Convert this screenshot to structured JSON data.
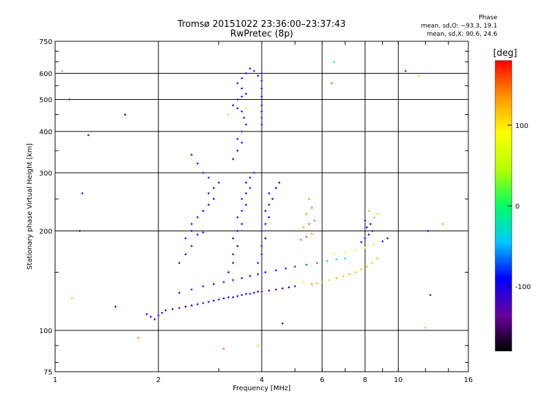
{
  "chart_data": {
    "type": "scatter",
    "title": "Tromsø 20151022 23:36:00–23:37:43",
    "subtitle": "RwPretec (8p)",
    "xlabel": "Frequency [MHz]",
    "ylabel": "Stationary phase Virtual Height [km]",
    "xscale": "log",
    "yscale": "log",
    "xlim": [
      1,
      16
    ],
    "ylim": [
      75,
      750
    ],
    "xticks": [
      1,
      2,
      4,
      6,
      8,
      10,
      16
    ],
    "yticks": [
      75,
      100,
      200,
      300,
      400,
      500,
      600,
      750
    ],
    "x_grid": [
      2,
      4,
      6,
      8,
      10
    ],
    "y_grid": [
      100,
      200,
      300,
      400,
      500,
      600
    ],
    "grid": true,
    "phase_box": {
      "heading": "Phase",
      "line_o": "mean, sd,O: −93.3, 19.1",
      "line_x": "mean, sd,X:  90.6, 24.6"
    },
    "colorbar": {
      "label": "[deg]",
      "range": [
        -180,
        180
      ],
      "ticks": [
        100,
        0,
        -100
      ],
      "colors": [
        "#000000",
        "#6a00a0",
        "#0000ff",
        "#00c8ff",
        "#00ff64",
        "#b4ff00",
        "#ffff00",
        "#ff9600",
        "#ff0000"
      ]
    },
    "series": [
      {
        "points": [
          [
            1.85,
            112,
            -110
          ],
          [
            1.9,
            110,
            -105
          ],
          [
            1.95,
            108,
            -115
          ],
          [
            2.0,
            111,
            -100
          ],
          [
            2.05,
            113,
            -95
          ],
          [
            2.1,
            115,
            -110
          ],
          [
            2.2,
            116,
            -105
          ],
          [
            2.3,
            117,
            -120
          ],
          [
            2.4,
            118,
            -100
          ],
          [
            2.5,
            119,
            -90
          ],
          [
            2.6,
            120,
            -110
          ],
          [
            2.7,
            121,
            -100
          ],
          [
            2.8,
            122,
            -95
          ],
          [
            2.9,
            123,
            -105
          ],
          [
            3.0,
            124,
            -100
          ],
          [
            3.1,
            125,
            -90
          ],
          [
            3.2,
            126,
            -110
          ],
          [
            3.3,
            126,
            -100
          ],
          [
            3.4,
            127,
            -105
          ],
          [
            3.5,
            128,
            -95
          ],
          [
            3.6,
            129,
            -100
          ],
          [
            3.7,
            129,
            -110
          ],
          [
            3.8,
            130,
            -100
          ],
          [
            3.9,
            131,
            -95
          ],
          [
            4.0,
            131,
            -100
          ],
          [
            4.2,
            132,
            -105
          ],
          [
            4.4,
            133,
            -100
          ],
          [
            4.6,
            134,
            -95
          ],
          [
            4.8,
            135,
            -90
          ],
          [
            5.0,
            136,
            -100
          ]
        ]
      },
      {
        "points": [
          [
            2.3,
            130,
            -90
          ],
          [
            2.5,
            133,
            -80
          ],
          [
            2.7,
            136,
            -100
          ],
          [
            2.9,
            138,
            -95
          ],
          [
            3.1,
            140,
            -85
          ],
          [
            3.3,
            142,
            -100
          ],
          [
            3.5,
            144,
            -90
          ],
          [
            3.7,
            146,
            -95
          ],
          [
            3.9,
            148,
            -100
          ],
          [
            4.1,
            150,
            -90
          ],
          [
            4.4,
            152,
            -85
          ],
          [
            4.7,
            154,
            -95
          ],
          [
            5.0,
            156,
            -80
          ],
          [
            5.4,
            158,
            -70
          ],
          [
            5.8,
            160,
            -60
          ],
          [
            6.2,
            162,
            -40
          ],
          [
            6.6,
            164,
            -20
          ],
          [
            7.0,
            165,
            -10
          ]
        ]
      },
      {
        "points": [
          [
            5.6,
            138,
            140
          ],
          [
            5.8,
            139,
            120
          ],
          [
            6.0,
            140,
            130
          ],
          [
            6.3,
            142,
            110
          ],
          [
            6.6,
            144,
            125
          ],
          [
            6.9,
            146,
            115
          ],
          [
            7.2,
            148,
            130
          ],
          [
            7.5,
            150,
            120
          ],
          [
            7.8,
            153,
            110
          ],
          [
            8.1,
            156,
            125
          ],
          [
            8.4,
            160,
            115
          ],
          [
            8.7,
            165,
            120
          ],
          [
            6.5,
            170,
            80
          ],
          [
            7.0,
            172,
            90
          ],
          [
            7.5,
            175,
            100
          ],
          [
            8.0,
            178,
            90
          ],
          [
            8.5,
            182,
            60
          ],
          [
            9.0,
            186,
            -100
          ],
          [
            9.3,
            190,
            -95
          ]
        ]
      },
      {
        "points": [
          [
            5.2,
            188,
            150
          ],
          [
            5.4,
            192,
            160
          ],
          [
            5.6,
            196,
            140
          ],
          [
            5.8,
            200,
            150
          ],
          [
            5.3,
            205,
            130
          ],
          [
            5.5,
            210,
            155
          ],
          [
            5.7,
            215,
            145
          ],
          [
            5.4,
            225,
            135
          ],
          [
            5.6,
            235,
            150
          ],
          [
            5.5,
            250,
            140
          ]
        ]
      },
      {
        "points": [
          [
            7.8,
            185,
            -110
          ],
          [
            8.0,
            190,
            -100
          ],
          [
            8.2,
            195,
            -95
          ],
          [
            8.4,
            200,
            -105
          ],
          [
            8.1,
            205,
            -90
          ],
          [
            8.3,
            210,
            -100
          ],
          [
            8.0,
            215,
            -95
          ],
          [
            8.5,
            220,
            20
          ],
          [
            8.7,
            225,
            40
          ],
          [
            8.2,
            230,
            30
          ]
        ]
      },
      {
        "points": [
          [
            2.3,
            160,
            -100
          ],
          [
            2.4,
            170,
            -95
          ],
          [
            2.5,
            180,
            -105
          ],
          [
            2.4,
            190,
            -110
          ],
          [
            2.5,
            200,
            -100
          ],
          [
            2.6,
            195,
            -90
          ],
          [
            2.7,
            198,
            -95
          ],
          [
            2.5,
            210,
            -100
          ],
          [
            2.6,
            220,
            -105
          ],
          [
            2.7,
            230,
            -95
          ],
          [
            2.8,
            240,
            -100
          ],
          [
            2.9,
            250,
            -90
          ],
          [
            2.8,
            260,
            -100
          ],
          [
            2.9,
            270,
            -95
          ],
          [
            3.0,
            280,
            -105
          ],
          [
            2.8,
            290,
            -100
          ],
          [
            2.7,
            300,
            -95
          ],
          [
            2.6,
            320,
            -100
          ],
          [
            2.5,
            340,
            -90
          ]
        ]
      },
      {
        "points": [
          [
            3.2,
            150,
            -100
          ],
          [
            3.3,
            160,
            -95
          ],
          [
            3.3,
            170,
            -105
          ],
          [
            3.4,
            180,
            -100
          ],
          [
            3.3,
            190,
            -90
          ],
          [
            3.4,
            200,
            -100
          ],
          [
            3.5,
            210,
            -95
          ],
          [
            3.4,
            220,
            -105
          ],
          [
            3.5,
            230,
            -100
          ],
          [
            3.6,
            240,
            -90
          ],
          [
            3.5,
            250,
            -100
          ],
          [
            3.6,
            260,
            -95
          ],
          [
            3.7,
            270,
            -105
          ],
          [
            3.6,
            280,
            -100
          ],
          [
            3.7,
            290,
            -95
          ],
          [
            3.8,
            300,
            -100
          ]
        ]
      },
      {
        "points": [
          [
            3.9,
            160,
            -100
          ],
          [
            4.0,
            170,
            -95
          ],
          [
            4.0,
            180,
            -105
          ],
          [
            4.1,
            190,
            -100
          ],
          [
            4.0,
            200,
            -90
          ],
          [
            4.1,
            210,
            -100
          ],
          [
            4.2,
            220,
            -95
          ],
          [
            4.1,
            230,
            -105
          ],
          [
            4.2,
            240,
            -100
          ],
          [
            4.3,
            250,
            -95
          ],
          [
            4.2,
            260,
            -100
          ],
          [
            4.4,
            270,
            -90
          ],
          [
            4.5,
            280,
            -100
          ]
        ]
      },
      {
        "points": [
          [
            3.3,
            330,
            -95
          ],
          [
            3.4,
            350,
            -100
          ],
          [
            3.5,
            370,
            -105
          ],
          [
            3.4,
            380,
            -100
          ],
          [
            3.5,
            400,
            -110
          ],
          [
            3.6,
            420,
            -100
          ],
          [
            3.55,
            440,
            -95
          ],
          [
            3.5,
            460,
            -100
          ],
          [
            3.4,
            470,
            -105
          ],
          [
            3.3,
            480,
            -100
          ],
          [
            3.4,
            500,
            -110
          ],
          [
            3.5,
            510,
            -100
          ],
          [
            3.6,
            520,
            -95
          ],
          [
            3.5,
            540,
            -100
          ],
          [
            3.4,
            560,
            -105
          ],
          [
            3.5,
            580,
            -100
          ],
          [
            3.6,
            600,
            -95
          ],
          [
            3.7,
            620,
            -110
          ],
          [
            3.8,
            610,
            -100
          ],
          [
            3.9,
            590,
            -105
          ],
          [
            3.2,
            450,
            40
          ],
          [
            3.6,
            470,
            60
          ]
        ]
      },
      {
        "points": [
          [
            4.0,
            420,
            -100
          ],
          [
            4.0,
            440,
            -105
          ],
          [
            4.0,
            460,
            -95
          ],
          [
            4.0,
            480,
            -100
          ],
          [
            4.0,
            510,
            -105
          ],
          [
            4.0,
            540,
            -100
          ],
          [
            4.0,
            570,
            -95
          ],
          [
            4.0,
            600,
            -100
          ]
        ]
      },
      {
        "points": [
          [
            1.05,
            610,
            20
          ],
          [
            1.1,
            500,
            -80
          ],
          [
            1.25,
            390,
            -100
          ],
          [
            1.2,
            260,
            -110
          ],
          [
            1.18,
            200,
            -100
          ],
          [
            1.12,
            125,
            120
          ],
          [
            1.6,
            450,
            -100
          ],
          [
            1.5,
            118,
            -90
          ],
          [
            1.75,
            95,
            140
          ],
          [
            3.1,
            88,
            150
          ],
          [
            3.9,
            90,
            30
          ],
          [
            4.6,
            105,
            -100
          ],
          [
            5.3,
            140,
            80
          ],
          [
            6.5,
            650,
            -30
          ],
          [
            6.4,
            560,
            150
          ],
          [
            10.5,
            610,
            -120
          ],
          [
            11.5,
            590,
            110
          ],
          [
            12.2,
            200,
            -100
          ],
          [
            13.5,
            210,
            140
          ],
          [
            12.4,
            128,
            -110
          ],
          [
            12.0,
            102,
            120
          ]
        ]
      }
    ]
  }
}
